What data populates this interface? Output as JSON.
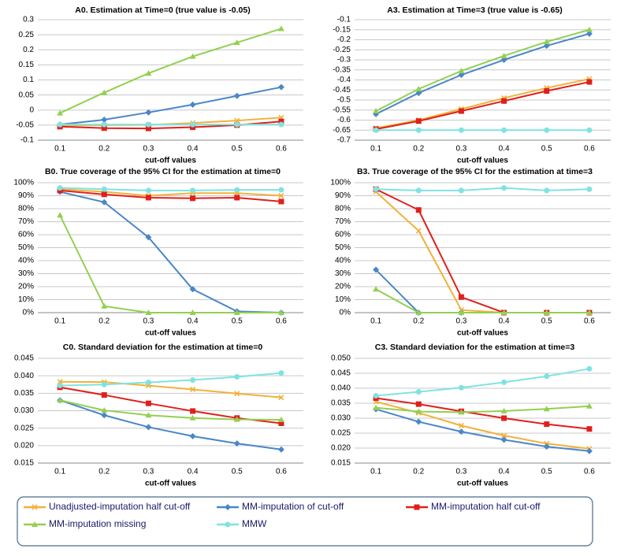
{
  "legend": [
    {
      "name": "Unadjusted-imputation half cut-off",
      "color": "#f2b13a",
      "marker": "x"
    },
    {
      "name": "MM-imputation of cut-off",
      "color": "#4a86c8",
      "marker": "diamond"
    },
    {
      "name": "MM-imputation half cut-off",
      "color": "#e0201b",
      "marker": "square"
    },
    {
      "name": "MM-imputation missing",
      "color": "#92d050",
      "marker": "triangle"
    },
    {
      "name": "MMW",
      "color": "#7fe3e0",
      "marker": "circle"
    }
  ],
  "chart_data": [
    {
      "type": "line",
      "title": "A0.  Estimation at Time=0 (true value is -0.05)",
      "xlabel": "cut-off values",
      "categories": [
        "0.1",
        "0.2",
        "0.3",
        "0.4",
        "0.5",
        "0.6"
      ],
      "series": [
        {
          "values": [
            -0.052,
            -0.05,
            -0.049,
            -0.043,
            -0.035,
            -0.025
          ]
        },
        {
          "values": [
            -0.048,
            -0.032,
            -0.008,
            0.018,
            0.047,
            0.076
          ]
        },
        {
          "values": [
            -0.055,
            -0.06,
            -0.061,
            -0.057,
            -0.05,
            -0.038
          ]
        },
        {
          "values": [
            -0.01,
            0.058,
            0.122,
            0.178,
            0.224,
            0.27
          ]
        },
        {
          "values": [
            -0.048,
            -0.048,
            -0.048,
            -0.048,
            -0.048,
            -0.048
          ]
        }
      ],
      "ylim": [
        -0.1,
        0.3
      ],
      "yticks": [
        -0.1,
        -0.05,
        0,
        0.05,
        0.1,
        0.15,
        0.2,
        0.25,
        0.3
      ],
      "grid": true
    },
    {
      "type": "line",
      "title": "A3.  Estimation at Time=3 (true value is -0.65)",
      "xlabel": "cut-off values",
      "categories": [
        "0.1",
        "0.2",
        "0.3",
        "0.4",
        "0.5",
        "0.6"
      ],
      "series": [
        {
          "values": [
            -0.64,
            -0.6,
            -0.545,
            -0.49,
            -0.44,
            -0.395
          ]
        },
        {
          "values": [
            -0.57,
            -0.465,
            -0.375,
            -0.3,
            -0.23,
            -0.17
          ]
        },
        {
          "values": [
            -0.645,
            -0.605,
            -0.555,
            -0.505,
            -0.455,
            -0.41
          ]
        },
        {
          "values": [
            -0.555,
            -0.445,
            -0.355,
            -0.28,
            -0.21,
            -0.15
          ]
        },
        {
          "values": [
            -0.65,
            -0.65,
            -0.65,
            -0.65,
            -0.65,
            -0.65
          ]
        }
      ],
      "ylim": [
        -0.7,
        -0.1
      ],
      "yticks": [
        -0.7,
        -0.65,
        -0.6,
        -0.55,
        -0.5,
        -0.45,
        -0.4,
        -0.35,
        -0.3,
        -0.25,
        -0.2,
        -0.15,
        -0.1
      ],
      "grid": true
    },
    {
      "type": "line",
      "title": "B0.  True coverage of the 95% CI for the estimation at time=0",
      "xlabel": "cut-off values",
      "categories": [
        "0.1",
        "0.2",
        "0.3",
        "0.4",
        "0.5",
        "0.6"
      ],
      "series": [
        {
          "values": [
            95,
            93,
            90,
            92,
            92,
            90
          ]
        },
        {
          "values": [
            93,
            85,
            58,
            18,
            1,
            0
          ]
        },
        {
          "values": [
            94,
            91,
            88.5,
            88,
            88.5,
            85.5
          ]
        },
        {
          "values": [
            75,
            5,
            0,
            0,
            0,
            0
          ]
        },
        {
          "values": [
            96,
            95,
            94,
            94,
            94.5,
            94.5
          ]
        }
      ],
      "ylim": [
        0,
        100
      ],
      "yticks": [
        {
          "value": 0,
          "label": "0%"
        },
        {
          "value": 10,
          "label": "10%"
        },
        {
          "value": 20,
          "label": "20%"
        },
        {
          "value": 30,
          "label": "30%"
        },
        {
          "value": 40,
          "label": "40%"
        },
        {
          "value": 50,
          "label": "50%"
        },
        {
          "value": 60,
          "label": "60%"
        },
        {
          "value": 70,
          "label": "70%"
        },
        {
          "value": 80,
          "label": "80%"
        },
        {
          "value": 90,
          "label": "90%"
        },
        {
          "value": 100,
          "label": "100%"
        }
      ],
      "grid": true
    },
    {
      "type": "line",
      "title": "B3.  True coverage of the 95% CI for the estimation at time=3",
      "xlabel": "cut-off values",
      "categories": [
        "0.1",
        "0.2",
        "0.3",
        "0.4",
        "0.5",
        "0.6"
      ],
      "series": [
        {
          "values": [
            93,
            63,
            2,
            0,
            0,
            0
          ]
        },
        {
          "values": [
            33,
            0,
            0,
            0,
            0,
            0
          ]
        },
        {
          "values": [
            95,
            79,
            12,
            0,
            0,
            0
          ]
        },
        {
          "values": [
            18,
            0,
            0,
            0,
            0,
            0
          ]
        },
        {
          "values": [
            95,
            94,
            94,
            96,
            94,
            95
          ]
        }
      ],
      "ylim": [
        0,
        100
      ],
      "yticks": [
        {
          "value": 0,
          "label": "0%"
        },
        {
          "value": 10,
          "label": "10%"
        },
        {
          "value": 20,
          "label": "20%"
        },
        {
          "value": 30,
          "label": "30%"
        },
        {
          "value": 40,
          "label": "40%"
        },
        {
          "value": 50,
          "label": "50%"
        },
        {
          "value": 60,
          "label": "60%"
        },
        {
          "value": 70,
          "label": "70%"
        },
        {
          "value": 80,
          "label": "80%"
        },
        {
          "value": 90,
          "label": "90%"
        },
        {
          "value": 100,
          "label": "100%"
        }
      ],
      "grid": true
    },
    {
      "type": "line",
      "title": "C0.  Standard deviation for the estimation at time=0",
      "xlabel": "cut-off values",
      "categories": [
        "0.1",
        "0.2",
        "0.3",
        "0.4",
        "0.5",
        "0.6"
      ],
      "series": [
        {
          "values": [
            0.0383,
            0.0382,
            0.0372,
            0.0361,
            0.0349,
            0.0338
          ]
        },
        {
          "values": [
            0.033,
            0.0287,
            0.0253,
            0.0227,
            0.0206,
            0.0189
          ]
        },
        {
          "values": [
            0.0367,
            0.0345,
            0.0321,
            0.0299,
            0.0279,
            0.0264
          ]
        },
        {
          "values": [
            0.033,
            0.0301,
            0.0287,
            0.0279,
            0.0275,
            0.0274
          ]
        },
        {
          "values": [
            0.0372,
            0.0375,
            0.0381,
            0.0388,
            0.0397,
            0.0408
          ]
        }
      ],
      "ylim": [
        0.015,
        0.045
      ],
      "yticks": [
        0.015,
        {
          "value": 0.02,
          "label": "0.020"
        },
        0.025,
        {
          "value": 0.03,
          "label": "0.030"
        },
        0.035,
        {
          "value": 0.04,
          "label": "0.040"
        },
        0.045
      ],
      "grid": true
    },
    {
      "type": "line",
      "title": "C3.  Standard deviation for the estimation at time=3",
      "xlabel": "cut-off values",
      "categories": [
        "0.1",
        "0.2",
        "0.3",
        "0.4",
        "0.5",
        "0.6"
      ],
      "series": [
        {
          "values": [
            0.0355,
            0.0318,
            0.0275,
            0.0242,
            0.0215,
            0.0198
          ]
        },
        {
          "values": [
            0.033,
            0.0288,
            0.0255,
            0.0228,
            0.0205,
            0.019
          ]
        },
        {
          "values": [
            0.0367,
            0.0347,
            0.0323,
            0.03,
            0.028,
            0.0264
          ]
        },
        {
          "values": [
            0.0335,
            0.0322,
            0.032,
            0.0324,
            0.0331,
            0.034
          ]
        },
        {
          "values": [
            0.0375,
            0.0388,
            0.0402,
            0.042,
            0.044,
            0.0465
          ]
        }
      ],
      "ylim": [
        0.015,
        0.05
      ],
      "yticks": [
        0.015,
        {
          "value": 0.02,
          "label": "0.020"
        },
        0.025,
        {
          "value": 0.03,
          "label": "0.030"
        },
        0.035,
        {
          "value": 0.04,
          "label": "0.040"
        },
        0.045,
        {
          "value": 0.05,
          "label": "0.050"
        }
      ],
      "grid": true
    }
  ]
}
